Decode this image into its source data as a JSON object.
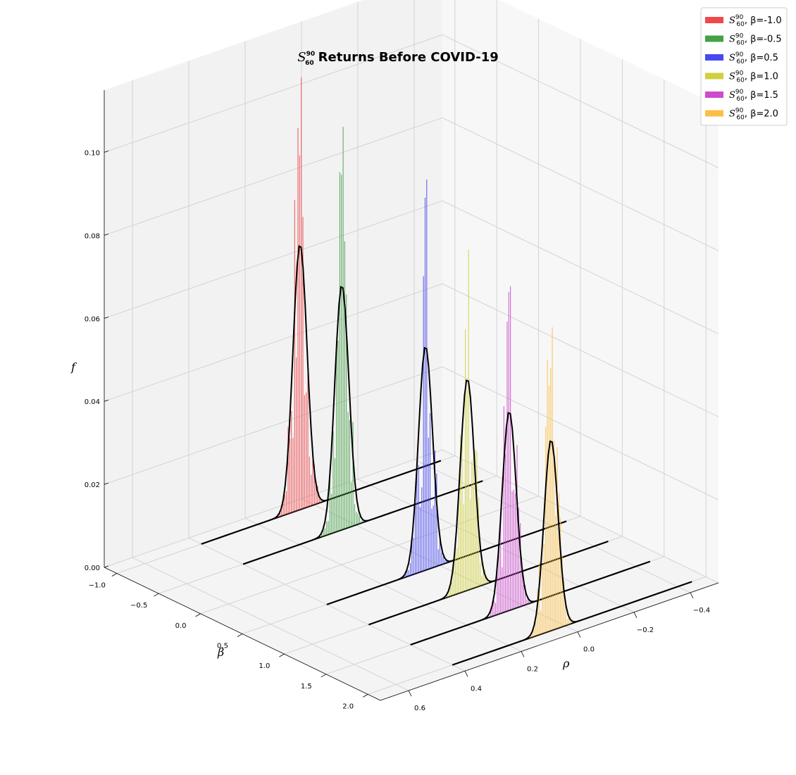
{
  "chart_data": {
    "type": "bar",
    "title": "Returns Before COVID-19",
    "title_symbol": {
      "base": "S",
      "sup": "90",
      "sub": "60"
    },
    "xlabel": "ρ",
    "ylabel": "β",
    "zlabel": "f",
    "xlim": [
      -0.5,
      0.7
    ],
    "ylim": [
      -1.15,
      2.15
    ],
    "zlim": [
      0,
      0.115
    ],
    "x_ticks": [
      "-0.4",
      "-0.2",
      "0.0",
      "0.2",
      "0.4",
      "0.6"
    ],
    "x_tick_values": [
      -0.4,
      -0.2,
      0.0,
      0.2,
      0.4,
      0.6
    ],
    "y_ticks": [
      "-1.0",
      "-0.5",
      "0.0",
      "0.5",
      "1.0",
      "1.5",
      "2.0"
    ],
    "y_tick_values": [
      -1.0,
      -0.5,
      0.0,
      0.5,
      1.0,
      1.5,
      2.0
    ],
    "z_ticks": [
      "0.00",
      "0.02",
      "0.04",
      "0.06",
      "0.08",
      "0.10"
    ],
    "z_tick_values": [
      0.0,
      0.02,
      0.04,
      0.06,
      0.08,
      0.1
    ],
    "grid": true,
    "legend_position": "top-right",
    "fit_curve_color": "#000000",
    "series": [
      {
        "label": "β=-1.0",
        "beta": -1.0,
        "color": "#f0484a",
        "peak_histogram": 0.104,
        "fit_peak": 0.064,
        "center": 0.05,
        "width": 0.025
      },
      {
        "label": "β=-0.5",
        "beta": -0.5,
        "color": "#46a046",
        "peak_histogram": 0.097,
        "fit_peak": 0.059,
        "center": 0.05,
        "width": 0.025
      },
      {
        "label": "β=0.5",
        "beta": 0.5,
        "color": "#4848f0",
        "peak_histogram": 0.094,
        "fit_peak": 0.054,
        "center": 0.05,
        "width": 0.025
      },
      {
        "label": "β=1.0",
        "beta": 1.0,
        "color": "#d0d040",
        "peak_histogram": 0.082,
        "fit_peak": 0.051,
        "center": 0.05,
        "width": 0.025
      },
      {
        "label": "β=1.5",
        "beta": 1.5,
        "color": "#cc4ccc",
        "peak_histogram": 0.078,
        "fit_peak": 0.048,
        "center": 0.05,
        "width": 0.025
      },
      {
        "label": "β=2.0",
        "beta": 2.0,
        "color": "#fbbf48",
        "peak_histogram": 0.073,
        "fit_peak": 0.046,
        "center": 0.05,
        "width": 0.025
      }
    ]
  }
}
